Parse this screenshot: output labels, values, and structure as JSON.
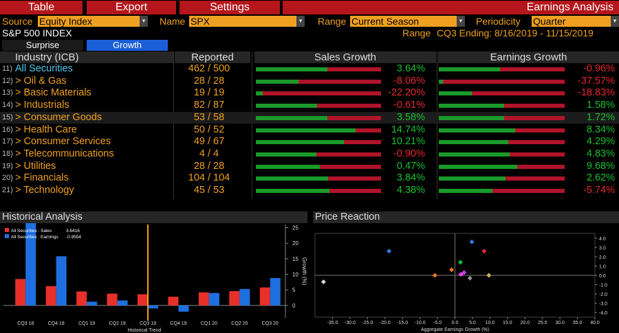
{
  "menu": {
    "table": "Table",
    "export": "Export",
    "settings": "Settings",
    "title": "Earnings Analysis"
  },
  "filters": {
    "source_label": "Source",
    "source_value": "Equity Index",
    "name_label": "Name",
    "name_value": "SPX",
    "range_label": "Range",
    "range_value": "Current Season",
    "periodicity_label": "Periodicity",
    "periodicity_value": "Quarter"
  },
  "index_name": "S&P 500 INDEX",
  "range_text": {
    "label": "Range",
    "value": "CQ3 Ending: 8/16/2019 - 11/15/2019"
  },
  "tabs": {
    "surprise": "Surprise",
    "growth": "Growth"
  },
  "table": {
    "headers": {
      "industry": "Industry (ICB)",
      "reported": "Reported",
      "sales": "Sales Growth",
      "earnings": "Earnings Growth"
    },
    "rows": [
      {
        "num": "11)",
        "name": "All Securities",
        "reported": "462",
        "total": "500",
        "sales": "3.64%",
        "sales_v": 3.64,
        "earn": "-0.96%",
        "earn_v": -0.96
      },
      {
        "num": "12)",
        "name": "> Oil & Gas",
        "reported": "28",
        "total": "28",
        "sales": "-8.06%",
        "sales_v": -8.06,
        "earn": "-37.57%",
        "earn_v": -37.57
      },
      {
        "num": "13)",
        "name": "> Basic Materials",
        "reported": "19",
        "total": "19",
        "sales": "-22.20%",
        "sales_v": -22.2,
        "earn": "-18.83%",
        "earn_v": -18.83
      },
      {
        "num": "14)",
        "name": "> Industrials",
        "reported": "82",
        "total": "87",
        "sales": "-0.61%",
        "sales_v": -0.61,
        "earn": "1.58%",
        "earn_v": 1.58
      },
      {
        "num": "15)",
        "name": "> Consumer Goods",
        "reported": "53",
        "total": "58",
        "sales": "3.58%",
        "sales_v": 3.58,
        "earn": "1.72%",
        "earn_v": 1.72
      },
      {
        "num": "16)",
        "name": "> Health Care",
        "reported": "50",
        "total": "52",
        "sales": "14.74%",
        "sales_v": 14.74,
        "earn": "8.34%",
        "earn_v": 8.34
      },
      {
        "num": "17)",
        "name": "> Consumer Services",
        "reported": "49",
        "total": "67",
        "sales": "10.21%",
        "sales_v": 10.21,
        "earn": "4.29%",
        "earn_v": 4.29
      },
      {
        "num": "18)",
        "name": "> Telecommunications",
        "reported": "4",
        "total": "4",
        "sales": "-0.90%",
        "sales_v": -0.9,
        "earn": "4.83%",
        "earn_v": 4.83
      },
      {
        "num": "19)",
        "name": "> Utilities",
        "reported": "28",
        "total": "28",
        "sales": "0.47%",
        "sales_v": 0.47,
        "earn": "9.68%",
        "earn_v": 9.68
      },
      {
        "num": "20)",
        "name": "> Financials",
        "reported": "104",
        "total": "104",
        "sales": "3.84%",
        "sales_v": 3.84,
        "earn": "2.62%",
        "earn_v": 2.62
      },
      {
        "num": "21)",
        "name": "> Technology",
        "reported": "45",
        "total": "53",
        "sales": "4.38%",
        "sales_v": 4.38,
        "earn": "-5.74%",
        "earn_v": -5.74
      }
    ]
  },
  "historical": {
    "title": "Historical Analysis",
    "legend": [
      {
        "label": "All Securities : Sales",
        "value": "3.6416",
        "color": "#e8302a"
      },
      {
        "label": "All Securities : Earnings",
        "value": "-0.9554",
        "color": "#1e6fe0"
      }
    ],
    "xlabel": "Historical Trend",
    "ylabel": "Growth (%)",
    "chart_data": {
      "type": "bar",
      "categories": [
        "CQ3 18",
        "CQ4 18",
        "CQ1 19",
        "CQ2 19",
        "CQ3 19",
        "CQ4 19",
        "CQ1 20",
        "CQ2 20",
        "CQ3 20"
      ],
      "series": [
        {
          "name": "All Securities : Sales",
          "values": [
            8.5,
            6.2,
            4.5,
            3.8,
            3.6,
            2.8,
            4.2,
            4.6,
            5.8
          ]
        },
        {
          "name": "All Securities : Earnings",
          "values": [
            26.5,
            15.8,
            1.2,
            1.6,
            -0.96,
            -2.0,
            4.0,
            5.3,
            8.8
          ]
        }
      ],
      "ylim": [
        -4,
        26
      ],
      "yticks": [
        0,
        5,
        10,
        15,
        20,
        25
      ],
      "current_marker": "CQ3 19"
    }
  },
  "price": {
    "title": "Price Reaction",
    "xlabel": "Aggregate Earnings Growth (%)",
    "chart_data": {
      "type": "scatter",
      "xlim": [
        -40,
        40
      ],
      "ylim": [
        -4.5,
        4.5
      ],
      "xticks": [
        -35,
        -30,
        -25,
        -20,
        -15,
        -10,
        -5,
        0,
        5,
        10,
        15,
        20,
        25,
        30,
        35,
        40
      ],
      "xtick_labels": [
        "-35.0",
        "-30.0",
        "-25.0",
        "-20.0",
        "-15.0",
        "-10.0",
        "-5.0",
        "0.0",
        "5.0",
        "10.0",
        "15.0",
        "20.0",
        "25.0",
        "30.0",
        "35.0",
        "40.0"
      ],
      "yticks": [
        4,
        3,
        2,
        1,
        0,
        -1,
        -2,
        -3,
        -4
      ],
      "ytick_labels": [
        "4.0",
        "3.0",
        "2.0",
        "1.0",
        "0.0",
        "-1.0",
        "-2.0",
        "-3.0",
        "-4.0"
      ],
      "points": [
        {
          "x": -37.57,
          "y": -0.7,
          "color": "#d8d8d8"
        },
        {
          "x": -18.83,
          "y": 2.6,
          "color": "#2e7be0"
        },
        {
          "x": -5.74,
          "y": 0.0,
          "color": "#f07820"
        },
        {
          "x": -0.96,
          "y": 0.6,
          "color": "#f07820"
        },
        {
          "x": 1.58,
          "y": 1.4,
          "color": "#19c030"
        },
        {
          "x": 1.72,
          "y": 0.1,
          "color": "#ff40ff"
        },
        {
          "x": 2.62,
          "y": 0.3,
          "color": "#c040e0"
        },
        {
          "x": 4.29,
          "y": -0.3,
          "color": "#909090"
        },
        {
          "x": 4.83,
          "y": 3.6,
          "color": "#2e7be0"
        },
        {
          "x": 8.34,
          "y": 2.6,
          "color": "#e82830"
        },
        {
          "x": 9.68,
          "y": 0.0,
          "color": "#d4b060"
        }
      ]
    }
  },
  "colors": {
    "menu_red": "#b4161b",
    "amber": "#f0a020",
    "pos_green": "#19c030",
    "neg_red": "#e82830",
    "bar_green": "#1a9a2a",
    "bar_red": "#b0142a"
  }
}
